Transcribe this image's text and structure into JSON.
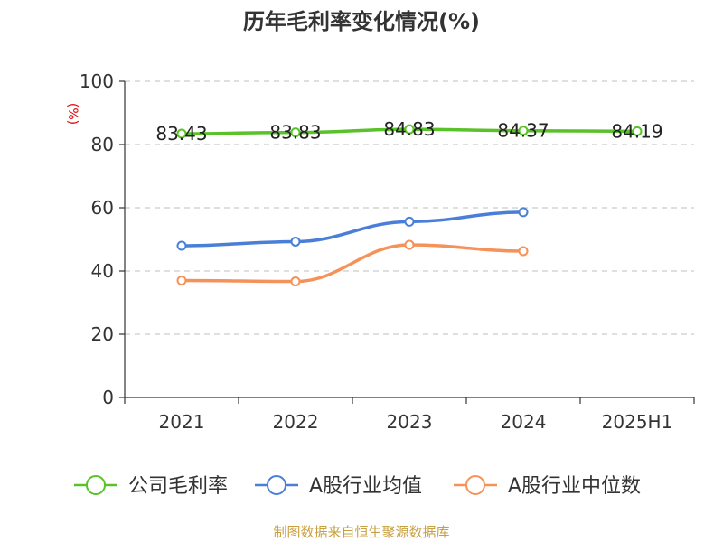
{
  "title": "历年毛利率变化情况(%)",
  "source": "制图数据来自恒生聚源数据库",
  "colors": {
    "company": "#5ac229",
    "industry_avg": "#4a7fd8",
    "industry_median": "#f5925a",
    "grid": "#cccccc",
    "axis": "#333333"
  },
  "chart_data": {
    "type": "line",
    "title": "历年毛利率变化情况(%)",
    "ylabel": "(%)",
    "xlabel": "",
    "categories": [
      "2021",
      "2022",
      "2023",
      "2024",
      "2025H1"
    ],
    "ylim": [
      0,
      100
    ],
    "yticks": [
      0,
      20,
      40,
      60,
      80,
      100
    ],
    "grid": true,
    "legend_position": "bottom",
    "series": [
      {
        "name": "公司毛利率",
        "values": [
          83.43,
          83.83,
          84.83,
          84.37,
          84.19
        ],
        "show_labels": true,
        "labels": [
          "83.43",
          "83.83",
          "84.83",
          "84.37",
          "84.19"
        ]
      },
      {
        "name": "A股行业均值",
        "values": [
          48.0,
          49.3,
          55.6,
          58.6,
          null
        ],
        "show_labels": false
      },
      {
        "name": "A股行业中位数",
        "values": [
          37.0,
          36.7,
          48.3,
          46.3,
          null
        ],
        "show_labels": false
      }
    ]
  }
}
